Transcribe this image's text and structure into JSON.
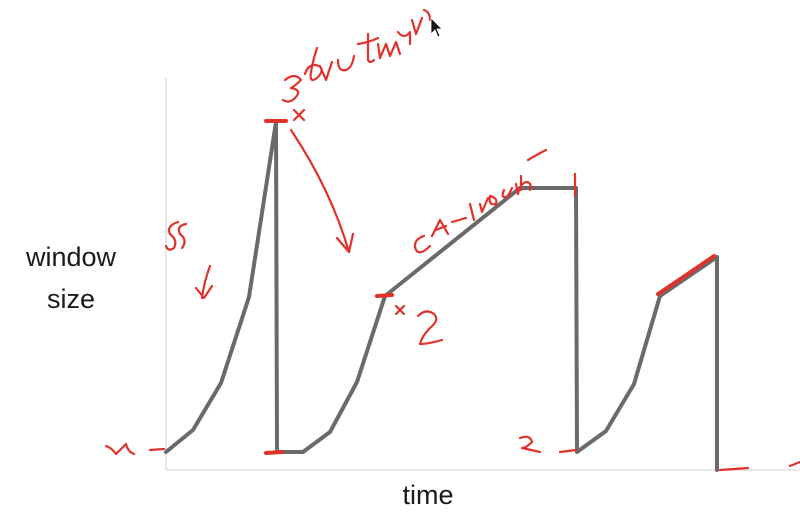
{
  "labels": {
    "y_axis": "window size",
    "x_axis": "time"
  },
  "colors": {
    "curve": "#6a6a6a",
    "annotation": "#e0312a",
    "axis": "#d9d9d9",
    "text": "#1a1a1a"
  },
  "icons": {
    "pointer": "mouse-cursor-icon"
  }
}
